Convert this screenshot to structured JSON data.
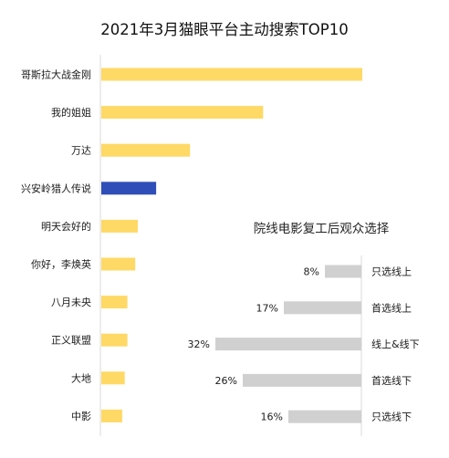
{
  "chart_data": [
    {
      "type": "bar",
      "orientation": "horizontal",
      "title": "2021年3月猫眼平台主动搜索TOP10",
      "categories": [
        "哥斯拉大战金刚",
        "我的姐姐",
        "万达",
        "兴安岭猎人传说",
        "明天会好的",
        "你好，李焕英",
        "八月未央",
        "正义联盟",
        "大地",
        "中影"
      ],
      "values": [
        100,
        62,
        34,
        21,
        14,
        13,
        10,
        10,
        9,
        8
      ],
      "value_unit": "relative (no axis printed)",
      "highlight_index": 3,
      "colors": {
        "bar": "#FFD966",
        "highlight": "#2F4EB8",
        "axis": "#D9D9D9",
        "text": "#1a1a1a",
        "title": "#111111"
      },
      "grid": false,
      "legend": "none"
    },
    {
      "type": "bar",
      "orientation": "horizontal",
      "direction": "right-to-left",
      "title": "院线电影复工后观众选择",
      "categories": [
        "只选线上",
        "首选线上",
        "线上&线下",
        "首选线下",
        "只选线下"
      ],
      "values": [
        8,
        17,
        32,
        26,
        16
      ],
      "labels": [
        "8%",
        "17%",
        "32%",
        "26%",
        "16%"
      ],
      "unit": "%",
      "colors": {
        "bar": "#D0D0D0",
        "axis": "#D9D9D9",
        "text": "#1a1a1a",
        "title": "#222222"
      },
      "grid": false,
      "legend": "none"
    }
  ]
}
